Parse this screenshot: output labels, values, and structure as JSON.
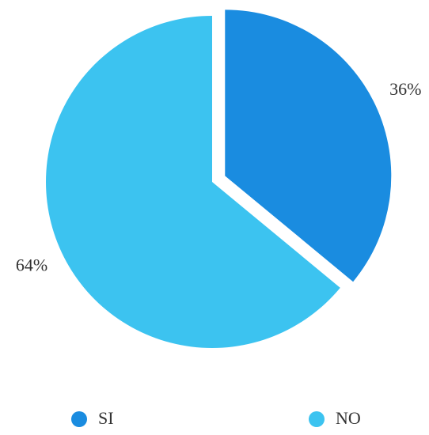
{
  "chart_data": {
    "type": "pie",
    "categories": [
      "SI",
      "NO"
    ],
    "values": [
      36,
      64
    ],
    "value_labels": [
      "36%",
      "64%"
    ],
    "colors": [
      "#1a8ce0",
      "#3cc3f0"
    ],
    "exploded": [
      true,
      false
    ],
    "legend": "bottom"
  }
}
